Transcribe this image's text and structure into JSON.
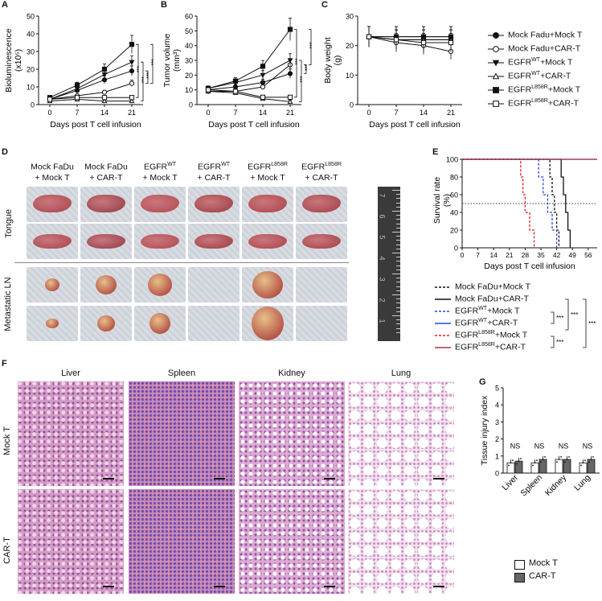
{
  "panel_labels": {
    "a": "A",
    "b": "B",
    "c": "C",
    "d": "D",
    "e": "E",
    "f": "F",
    "g": "G"
  },
  "chart_data": [
    {
      "id": "A",
      "type": "line",
      "ylabel_line1": "Bioluminescence",
      "ylabel_line2": "(x10⁵)",
      "xlabel": "Days post T cell infusion",
      "x": [
        0,
        7,
        14,
        21
      ],
      "ylim": [
        0,
        50
      ],
      "yticks": [
        0,
        10,
        20,
        30,
        40,
        50
      ],
      "series": [
        {
          "name": "Mock Fadu+Mock T",
          "values": [
            3,
            8,
            14,
            19
          ]
        },
        {
          "name": "Mock Fadu+CAR-T",
          "values": [
            3,
            5,
            7,
            12
          ]
        },
        {
          "name": "EGFRWT+Mock T",
          "values": [
            3,
            9,
            17,
            24
          ]
        },
        {
          "name": "EGFRWT+CAR-T",
          "values": [
            2,
            3,
            2,
            2
          ]
        },
        {
          "name": "EGFRL858R+Mock T",
          "values": [
            4,
            11,
            20,
            34
          ]
        },
        {
          "name": "EGFRL858R+CAR-T",
          "values": [
            3,
            4,
            4,
            4
          ]
        }
      ],
      "sig": [
        "***",
        "***",
        "***",
        "***"
      ]
    },
    {
      "id": "B",
      "type": "line",
      "ylabel_line1": "Tumor volume",
      "ylabel_line2": "(mm³)",
      "xlabel": "Days post T cell infusion",
      "x": [
        0,
        7,
        14,
        21
      ],
      "ylim": [
        0,
        60
      ],
      "yticks": [
        0,
        10,
        20,
        30,
        40,
        50,
        60
      ],
      "series": [
        {
          "name": "Mock Fadu+Mock T",
          "values": [
            10,
            12,
            15,
            21
          ]
        },
        {
          "name": "Mock Fadu+CAR-T",
          "values": [
            9,
            9,
            12,
            27
          ]
        },
        {
          "name": "EGFRWT+Mock T",
          "values": [
            11,
            15,
            20,
            30
          ]
        },
        {
          "name": "EGFRWT+CAR-T",
          "values": [
            9,
            8,
            4,
            2
          ]
        },
        {
          "name": "EGFRL858R+Mock T",
          "values": [
            11,
            16,
            26,
            51
          ]
        },
        {
          "name": "EGFRL858R+CAR-T",
          "values": [
            10,
            9,
            5,
            5
          ]
        }
      ],
      "sig": [
        "***",
        "***",
        "***",
        "***"
      ]
    },
    {
      "id": "C",
      "type": "line",
      "ylabel_line1": "Body weight",
      "ylabel_line2": "(g)",
      "xlabel": "Days post T cell infusion",
      "x": [
        0,
        7,
        14,
        21
      ],
      "ylim": [
        0,
        30
      ],
      "yticks": [
        0,
        10,
        20,
        30
      ],
      "series": [
        {
          "name": "Mock Fadu+Mock T",
          "values": [
            23,
            22,
            22,
            22
          ]
        },
        {
          "name": "Mock Fadu+CAR-T",
          "values": [
            23,
            21,
            20,
            18
          ]
        },
        {
          "name": "EGFRWT+Mock T",
          "values": [
            23,
            23,
            23,
            23
          ]
        },
        {
          "name": "EGFRWT+CAR-T",
          "values": [
            23,
            22,
            22,
            22
          ]
        },
        {
          "name": "EGFRL858R+Mock T",
          "values": [
            23,
            23,
            23,
            23
          ]
        },
        {
          "name": "EGFRL858R+CAR-T",
          "values": [
            23,
            22,
            21,
            21
          ]
        }
      ]
    },
    {
      "id": "E",
      "type": "line",
      "ylabel_line1": "Survival rate",
      "ylabel_line2": "(%)",
      "xlabel": "Days post T cell infusion",
      "xticks": [
        0,
        7,
        14,
        21,
        28,
        35,
        42,
        49,
        56
      ],
      "ylim": [
        0,
        100
      ],
      "yticks": [
        0,
        20,
        40,
        60,
        80,
        100
      ],
      "median_line": 50,
      "series": [
        {
          "name": "Mock FaDu+Mock T",
          "color": "#111111",
          "dash": true,
          "steps": [
            [
              0,
              100
            ],
            [
              39,
              100
            ],
            [
              39,
              80
            ],
            [
              40,
              80
            ],
            [
              40,
              60
            ],
            [
              41,
              60
            ],
            [
              41,
              40
            ],
            [
              42,
              40
            ],
            [
              42,
              20
            ],
            [
              43,
              20
            ],
            [
              43,
              0
            ]
          ]
        },
        {
          "name": "Mock FaDu+CAR-T",
          "color": "#111111",
          "dash": false,
          "steps": [
            [
              0,
              100
            ],
            [
              44,
              100
            ],
            [
              44,
              80
            ],
            [
              45,
              80
            ],
            [
              45,
              60
            ],
            [
              46,
              60
            ],
            [
              46,
              40
            ],
            [
              47,
              40
            ],
            [
              47,
              20
            ],
            [
              48,
              20
            ],
            [
              48,
              0
            ]
          ]
        },
        {
          "name": "EGFRWT+Mock T",
          "color": "#2a45d8",
          "dash": true,
          "steps": [
            [
              0,
              100
            ],
            [
              34,
              100
            ],
            [
              34,
              80
            ],
            [
              36,
              80
            ],
            [
              36,
              60
            ],
            [
              38,
              60
            ],
            [
              38,
              40
            ],
            [
              40,
              40
            ],
            [
              40,
              20
            ],
            [
              42,
              20
            ],
            [
              42,
              0
            ]
          ]
        },
        {
          "name": "EGFRWT+CAR-T",
          "color": "#2a45d8",
          "dash": false,
          "steps": [
            [
              0,
              100
            ],
            [
              60,
              100
            ]
          ]
        },
        {
          "name": "EGFRL858R+Mock T",
          "color": "#e02020",
          "dash": true,
          "steps": [
            [
              0,
              100
            ],
            [
              26,
              100
            ],
            [
              26,
              80
            ],
            [
              27,
              80
            ],
            [
              27,
              60
            ],
            [
              28,
              60
            ],
            [
              28,
              40
            ],
            [
              30,
              40
            ],
            [
              30,
              20
            ],
            [
              32,
              20
            ],
            [
              32,
              0
            ]
          ]
        },
        {
          "name": "EGFRL858R+CAR-T",
          "color": "#b03040",
          "dash": false,
          "steps": [
            [
              0,
              100
            ],
            [
              60,
              100
            ]
          ]
        }
      ],
      "sig": [
        "***",
        "***",
        "***",
        "***"
      ]
    },
    {
      "id": "G",
      "type": "bar",
      "ylabel": "Tissue injury index",
      "categories": [
        "Liver",
        "Spleen",
        "Kidney",
        "Lung"
      ],
      "ylim": [
        0,
        5
      ],
      "yticks": [
        0,
        1,
        2,
        3,
        4,
        5
      ],
      "series": [
        {
          "name": "Mock T",
          "values": [
            0.6,
            0.6,
            0.8,
            0.6
          ],
          "color": "#ffffff"
        },
        {
          "name": "CAR-T",
          "values": [
            0.7,
            0.8,
            0.8,
            0.8
          ],
          "color": "#666666"
        }
      ],
      "annotations": [
        "NS",
        "NS",
        "NS",
        "NS"
      ]
    }
  ],
  "legend_abc": [
    {
      "name_main": "Mock Fadu+Mock T",
      "sup": "",
      "name_tail": "",
      "marker": "circle-filled"
    },
    {
      "name_main": "Mock Fadu+CAR-T",
      "sup": "",
      "name_tail": "",
      "marker": "circle-open"
    },
    {
      "name_main": "EGFR",
      "sup": "WT",
      "name_tail": "+Mock T",
      "marker": "tri-filled"
    },
    {
      "name_main": "EGFR",
      "sup": "WT",
      "name_tail": "+CAR-T",
      "marker": "tri-open"
    },
    {
      "name_main": "EGFR",
      "sup": "L858R",
      "name_tail": "+Mock T",
      "marker": "square-filled"
    },
    {
      "name_main": "EGFR",
      "sup": "L858R",
      "name_tail": "+CAR-T",
      "marker": "square-open"
    }
  ],
  "legend_e": [
    {
      "name_main": "Mock FaDu+Mock T",
      "sup": "",
      "name_tail": ""
    },
    {
      "name_main": "Mock FaDu+CAR-T",
      "sup": "",
      "name_tail": ""
    },
    {
      "name_main": "EGFR",
      "sup": "WT",
      "name_tail": "+Mock T"
    },
    {
      "name_main": "EGFR",
      "sup": "WT",
      "name_tail": "+CAR-T"
    },
    {
      "name_main": "EGFR",
      "sup": "L858R",
      "name_tail": "+Mock T"
    },
    {
      "name_main": "EGFR",
      "sup": "L858R",
      "name_tail": "+CAR-T"
    }
  ],
  "panel_d": {
    "columns": [
      {
        "l1": "Mock FaDu",
        "l2": "+ Mock T",
        "sup": ""
      },
      {
        "l1": "Mock FaDu",
        "l2": "+ CAR-T",
        "sup": ""
      },
      {
        "l1": "EGFR",
        "l2": "+ Mock T",
        "sup": "WT"
      },
      {
        "l1": "EGFR",
        "l2": "+ CAR-T",
        "sup": "WT"
      },
      {
        "l1": "EGFR",
        "l2": "+ Mock T",
        "sup": "L858R"
      },
      {
        "l1": "EGFR",
        "l2": "+ CAR-T",
        "sup": "L858R"
      }
    ],
    "row_tongue": "Tongue",
    "row_ln": "Metastatic LN",
    "ruler_numbers": [
      "7",
      "6",
      "5",
      "4",
      "3",
      "2",
      "1"
    ]
  },
  "panel_f": {
    "columns": [
      "Liver",
      "Spleen",
      "Kidney",
      "Lung"
    ],
    "rows": [
      "Mock T",
      "CAR-T"
    ]
  }
}
